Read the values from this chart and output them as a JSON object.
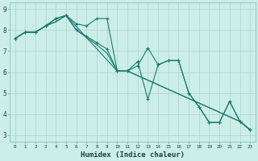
{
  "title": "",
  "xlabel": "Humidex (Indice chaleur)",
  "ylabel": "",
  "bg_color": "#cceee8",
  "grid_color": "#aad4cc",
  "line_color": "#1a7a6a",
  "xlim": [
    -0.5,
    23.5
  ],
  "ylim": [
    2.7,
    9.3
  ],
  "yticks": [
    3,
    4,
    5,
    6,
    7,
    8,
    9
  ],
  "xticks": [
    0,
    1,
    2,
    3,
    4,
    5,
    6,
    7,
    8,
    9,
    10,
    11,
    12,
    13,
    14,
    15,
    16,
    17,
    18,
    19,
    20,
    21,
    22,
    23
  ],
  "series1": {
    "x": [
      0,
      1,
      2,
      3,
      4,
      5,
      6,
      7,
      8,
      9,
      10,
      11,
      12,
      13,
      14,
      15,
      16,
      17,
      18,
      19,
      20,
      21,
      22,
      23
    ],
    "y": [
      7.6,
      7.9,
      7.9,
      8.2,
      8.55,
      8.7,
      8.3,
      8.2,
      8.55,
      8.55,
      6.05,
      6.05,
      6.5,
      4.7,
      6.35,
      6.55,
      6.55,
      5.0,
      4.35,
      3.6,
      3.6,
      4.6,
      3.65,
      3.25
    ]
  },
  "series2": {
    "x": [
      0,
      1,
      2,
      3,
      4,
      5,
      6,
      7,
      8,
      9,
      10,
      11,
      12,
      13,
      14,
      15,
      16,
      17,
      18,
      19,
      20,
      21,
      22,
      23
    ],
    "y": [
      7.6,
      7.9,
      7.9,
      8.2,
      8.55,
      8.7,
      8.0,
      7.7,
      7.4,
      7.1,
      6.05,
      6.05,
      6.3,
      7.15,
      6.35,
      6.55,
      6.55,
      5.0,
      4.35,
      3.6,
      3.6,
      4.6,
      3.65,
      3.25
    ]
  },
  "series3": {
    "x": [
      0,
      1,
      2,
      3,
      4,
      5,
      6,
      7,
      8,
      9,
      10,
      11,
      22,
      23
    ],
    "y": [
      7.6,
      7.9,
      7.9,
      8.2,
      8.4,
      8.7,
      8.0,
      7.65,
      7.3,
      6.9,
      6.05,
      6.05,
      3.65,
      3.25
    ]
  },
  "series4": {
    "x": [
      0,
      1,
      2,
      3,
      4,
      5,
      10,
      11,
      22,
      23
    ],
    "y": [
      7.6,
      7.9,
      7.9,
      8.2,
      8.4,
      8.7,
      6.05,
      6.05,
      3.65,
      3.25
    ]
  }
}
